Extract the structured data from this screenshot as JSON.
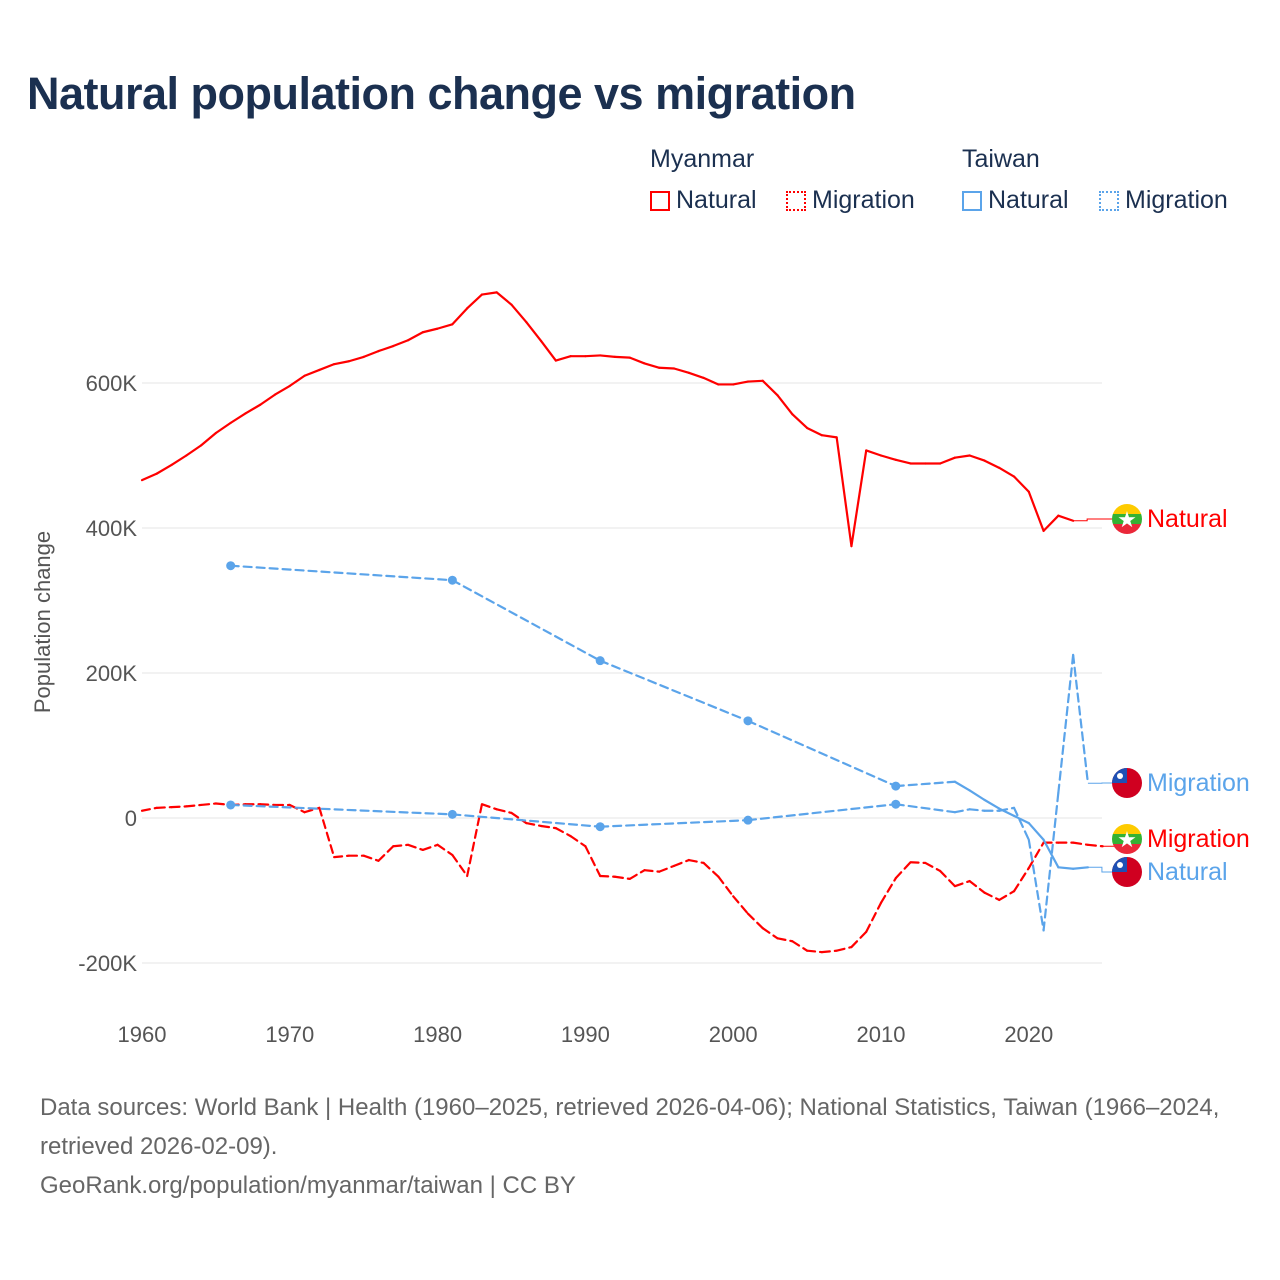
{
  "title": "Natural population change vs migration",
  "legend": {
    "groups": [
      {
        "name": "Myanmar",
        "items": [
          "Natural",
          "Migration"
        ],
        "color": "#ff0000"
      },
      {
        "name": "Taiwan",
        "items": [
          "Natural",
          "Migration"
        ],
        "color": "#5ba4ea"
      }
    ]
  },
  "footer": {
    "sources": "Data sources: World Bank | Health (1960–2025, retrieved 2026-04-06); National Statistics, Taiwan (1966–2024, retrieved 2026-02-09).",
    "credit": "GeoRank.org/population/myanmar/taiwan | CC BY"
  },
  "chart_data": {
    "type": "line",
    "title": "Natural population change vs migration",
    "xlabel": "",
    "ylabel": "Population change",
    "xlim": [
      1960,
      2025
    ],
    "ylim": [
      -200000,
      750000
    ],
    "x_ticks": [
      1960,
      1970,
      1980,
      1990,
      2000,
      2010,
      2020
    ],
    "y_ticks": [
      {
        "v": -200000,
        "label": "-200K"
      },
      {
        "v": 0,
        "label": "0"
      },
      {
        "v": 200000,
        "label": "200K"
      },
      {
        "v": 400000,
        "label": "400K"
      },
      {
        "v": 600000,
        "label": "600K"
      }
    ],
    "series": [
      {
        "name": "Myanmar Natural",
        "end_label": "Natural",
        "color": "#ff0000",
        "style": "solid",
        "flag": "myanmar",
        "x": [
          1960,
          1961,
          1962,
          1963,
          1964,
          1965,
          1966,
          1967,
          1968,
          1969,
          1970,
          1971,
          1972,
          1973,
          1974,
          1975,
          1976,
          1977,
          1978,
          1979,
          1980,
          1981,
          1982,
          1983,
          1984,
          1985,
          1986,
          1987,
          1988,
          1989,
          1990,
          1991,
          1992,
          1993,
          1994,
          1995,
          1996,
          1997,
          1998,
          1999,
          2000,
          2001,
          2002,
          2003,
          2004,
          2005,
          2006,
          2007,
          2008,
          2009,
          2010,
          2011,
          2012,
          2013,
          2014,
          2015,
          2016,
          2017,
          2018,
          2019,
          2020,
          2021,
          2022,
          2023
        ],
        "y": [
          466,
          475,
          487,
          500,
          514,
          531,
          545,
          558,
          570,
          584,
          596,
          610,
          618,
          626,
          630,
          636,
          644,
          651,
          659,
          670,
          675,
          681,
          703,
          722,
          725,
          708,
          684,
          658,
          631,
          637,
          637,
          638,
          636,
          635,
          627,
          621,
          620,
          614,
          607,
          598,
          598,
          602,
          603,
          583,
          557,
          538,
          528,
          525,
          375,
          507,
          500,
          494,
          489,
          489,
          489,
          497,
          500,
          493,
          483,
          471,
          450,
          396,
          417,
          410
        ],
        "unit": "thousands"
      },
      {
        "name": "Myanmar Migration",
        "end_label": "Migration",
        "color": "#ff0000",
        "style": "dashed",
        "flag": "myanmar",
        "x": [
          1960,
          1961,
          1962,
          1963,
          1964,
          1965,
          1966,
          1967,
          1968,
          1969,
          1970,
          1971,
          1972,
          1973,
          1974,
          1975,
          1976,
          1977,
          1978,
          1979,
          1980,
          1981,
          1982,
          1983,
          1984,
          1985,
          1986,
          1987,
          1988,
          1989,
          1990,
          1991,
          1992,
          1993,
          1994,
          1995,
          1996,
          1997,
          1998,
          1999,
          2000,
          2001,
          2002,
          2003,
          2004,
          2005,
          2006,
          2007,
          2008,
          2009,
          2010,
          2011,
          2012,
          2013,
          2014,
          2015,
          2016,
          2017,
          2018,
          2019,
          2020,
          2021,
          2022,
          2023,
          2024,
          2025
        ],
        "y": [
          10,
          14,
          15,
          16,
          18,
          20,
          18,
          19,
          19,
          18,
          18,
          8,
          14,
          -54,
          -52,
          -52,
          -59,
          -39,
          -37,
          -44,
          -37,
          -51,
          -80,
          19,
          12,
          7,
          -7,
          -11,
          -14,
          -25,
          -39,
          -80,
          -81,
          -84,
          -72,
          -74,
          -66,
          -58,
          -62,
          -81,
          -108,
          -132,
          -152,
          -166,
          -170,
          -183,
          -185,
          -183,
          -178,
          -157,
          -117,
          -83,
          -61,
          -62,
          -73,
          -94,
          -87,
          -103,
          -113,
          -101,
          -69,
          -34,
          -34,
          -34,
          -37,
          -39
        ],
        "unit": "thousands"
      },
      {
        "name": "Taiwan Natural",
        "end_label": "Natural",
        "color": "#5ba4ea",
        "style": "solid",
        "flag": "taiwan",
        "x": [
          1966,
          1981,
          1991,
          2001,
          2011,
          2015,
          2016,
          2017,
          2018,
          2019,
          2020,
          2021,
          2022,
          2023,
          2024
        ],
        "y": [
          348,
          328,
          217,
          134,
          44,
          50,
          38,
          25,
          13,
          3,
          -7,
          -30,
          -68,
          -70,
          -68
        ],
        "unit": "thousands"
      },
      {
        "name": "Taiwan Migration",
        "end_label": "Migration",
        "color": "#5ba4ea",
        "style": "dashed",
        "flag": "taiwan",
        "x": [
          1966,
          1981,
          1991,
          2001,
          2011,
          2015,
          2016,
          2017,
          2018,
          2019,
          2020,
          2021,
          2022,
          2023,
          2024
        ],
        "y": [
          18,
          5,
          -12,
          -3,
          19,
          8,
          12,
          10,
          10,
          14,
          -30,
          -155,
          35,
          225,
          48
        ],
        "unit": "thousands"
      }
    ]
  }
}
